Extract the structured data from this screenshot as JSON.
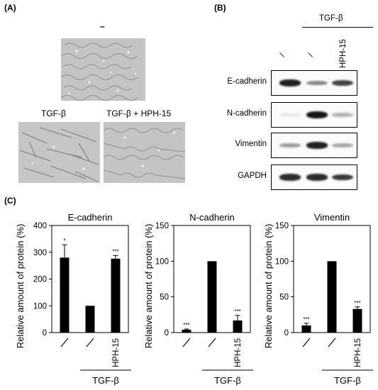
{
  "panels": {
    "a": {
      "label": "(A)",
      "top_caption": "–",
      "left_caption": "TGF-β",
      "right_caption": "TGF-β + HPH-15"
    },
    "b": {
      "label": "(B)",
      "treatment_header": "TGF-β",
      "lane_labels": [
        "/",
        "/",
        "HPH-15"
      ],
      "rows": [
        {
          "label": "E-cadherin",
          "intensity": [
            0.9,
            0.45,
            0.75
          ]
        },
        {
          "label": "N-cadherin",
          "intensity": [
            0.03,
            0.95,
            0.25
          ]
        },
        {
          "label": "Vimentin",
          "intensity": [
            0.35,
            0.9,
            0.3
          ]
        },
        {
          "label": "GAPDH",
          "intensity": [
            0.85,
            0.85,
            0.8
          ]
        }
      ]
    },
    "c": {
      "label": "(C)"
    }
  },
  "chart_data": [
    {
      "type": "bar",
      "title": "E-cadherin",
      "ylabel": "Relative amount of protein (%)",
      "categories": [
        "/",
        "/",
        "HPH-15"
      ],
      "values": [
        280,
        100,
        276
      ],
      "errors": [
        48,
        0,
        12
      ],
      "significance": [
        "*",
        "",
        "***"
      ],
      "ylim": [
        0,
        400
      ],
      "yticks": [
        "0",
        "100",
        "200",
        "300",
        "400"
      ],
      "group_label": "TGF-β"
    },
    {
      "type": "bar",
      "title": "N-cadherin",
      "ylabel": "Relative amount of protein (%)",
      "categories": [
        "/",
        "/",
        "HPH-15"
      ],
      "values": [
        4,
        100,
        17
      ],
      "errors": [
        1,
        0,
        7
      ],
      "significance": [
        "***",
        "",
        "***"
      ],
      "ylim": [
        0,
        150
      ],
      "yticks": [
        "0",
        "50",
        "100",
        "150"
      ],
      "group_label": "TGF-β"
    },
    {
      "type": "bar",
      "title": "Vimentin",
      "ylabel": "Relative amount of protein (%)",
      "categories": [
        "/",
        "/",
        "HPH-15"
      ],
      "values": [
        10,
        100,
        33
      ],
      "errors": [
        3,
        0,
        3
      ],
      "significance": [
        "***",
        "",
        "***"
      ],
      "ylim": [
        0,
        150
      ],
      "yticks": [
        "0",
        "50",
        "100",
        "150"
      ],
      "group_label": "TGF-β"
    }
  ]
}
